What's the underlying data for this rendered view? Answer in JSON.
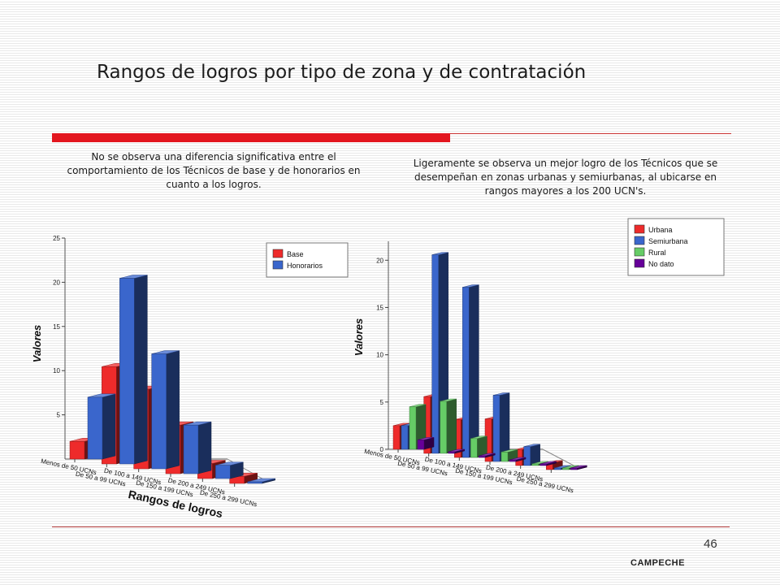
{
  "header": {
    "title": "Rangos de logros por tipo de zona y de contratación"
  },
  "notes": {
    "left": "No se observa una diferencia significativa  entre el comportamiento de los Técnicos de base y de honorarios en cuanto a los logros.",
    "right": "Ligeramente se observa un mejor logro de los Técnicos que se desempeñan en zonas urbanas y semiurbanas, al ubicarse en rangos mayores a los 200 UCN's."
  },
  "footer": {
    "page_number": "46",
    "text": "CAMPECHE"
  },
  "chart_data": [
    {
      "type": "bar",
      "ylabel": "Valores",
      "xlabel": "Rangos de logros",
      "ylim": [
        0,
        25
      ],
      "yticks": [
        5,
        10,
        15,
        20,
        25
      ],
      "categories": [
        "Menos de 50 UCNs",
        "De 50 a 99 UCNs",
        "De 100 a 149 UCNs",
        "De 150 a 199 UCNs",
        "De 200 a 249 UCNs",
        "De 250 a 299 UCNs"
      ],
      "series": [
        {
          "name": "Base",
          "color": "#ee2b2b",
          "values": [
            2,
            11,
            9,
            5.5,
            1.7,
            0.8
          ]
        },
        {
          "name": "Honorarios",
          "color": "#3a66cc",
          "values": [
            7,
            21,
            13,
            5.5,
            1.5,
            0.1
          ]
        }
      ],
      "legend": "top-right",
      "view": "3d"
    },
    {
      "type": "bar",
      "ylabel": "Valores",
      "xlabel": "",
      "ylim": [
        0,
        22
      ],
      "yticks": [
        0,
        5,
        10,
        15,
        20
      ],
      "categories": [
        "Menos de 50 UCNs",
        "De 50 a 99 UCNs",
        "De 100 a 149 UCNs",
        "De 150 a 199 UCNs",
        "De 200 a 249 UCNs",
        "De 250 a 299 UCNs"
      ],
      "series": [
        {
          "name": "Urbana",
          "color": "#ee2b2b",
          "values": [
            2.5,
            6,
            4,
            4.5,
            1.7,
            0.7
          ]
        },
        {
          "name": "Semiurbana",
          "color": "#3a66cc",
          "values": [
            2.5,
            21,
            18,
            7,
            2,
            0.1
          ]
        },
        {
          "name": "Rural",
          "color": "#66cc66",
          "values": [
            4.5,
            5.5,
            2,
            1,
            0.1,
            0.1
          ]
        },
        {
          "name": "No dato",
          "color": "#660099",
          "values": [
            1,
            0.1,
            0.1,
            0.1,
            0.1,
            0.1
          ]
        }
      ],
      "legend": "top-right",
      "view": "3d"
    }
  ]
}
